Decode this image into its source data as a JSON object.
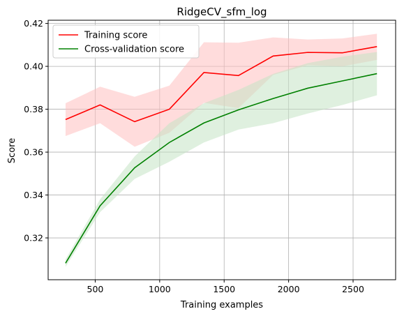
{
  "chart_data": {
    "type": "line",
    "title": "RidgeCV_sfm_log",
    "xlabel": "Training examples",
    "ylabel": "Score",
    "xlim": [
      135,
      2830
    ],
    "ylim": [
      0.3005,
      0.4215
    ],
    "xticks": [
      500,
      1000,
      1500,
      2000,
      2500
    ],
    "yticks": [
      0.32,
      0.34,
      0.36,
      0.38,
      0.4,
      0.42
    ],
    "grid": true,
    "legend_position": "top-left",
    "x": [
      270,
      538,
      806,
      1075,
      1343,
      1611,
      1880,
      2148,
      2417,
      2685
    ],
    "series": [
      {
        "name": "Training score",
        "color": "#ff0000",
        "band_color": "#ffc0c0",
        "values": [
          0.3752,
          0.382,
          0.3742,
          0.38,
          0.3971,
          0.3957,
          0.4048,
          0.4065,
          0.4063,
          0.4092
        ],
        "band_low": [
          0.3675,
          0.3735,
          0.3625,
          0.369,
          0.383,
          0.3805,
          0.396,
          0.4005,
          0.4,
          0.403
        ],
        "band_high": [
          0.3828,
          0.3905,
          0.3858,
          0.391,
          0.4112,
          0.411,
          0.4135,
          0.4125,
          0.413,
          0.4152
        ]
      },
      {
        "name": "Cross-validation score",
        "color": "#008000",
        "band_color": "#c4e4c4",
        "values": [
          0.3082,
          0.335,
          0.3527,
          0.3645,
          0.3736,
          0.3797,
          0.385,
          0.3898,
          0.3932,
          0.3966
        ],
        "band_low": [
          0.3065,
          0.332,
          0.3475,
          0.3555,
          0.3645,
          0.3705,
          0.3735,
          0.378,
          0.382,
          0.3865
        ],
        "band_high": [
          0.31,
          0.338,
          0.358,
          0.3735,
          0.3828,
          0.389,
          0.3965,
          0.4015,
          0.4045,
          0.4067
        ]
      }
    ]
  }
}
